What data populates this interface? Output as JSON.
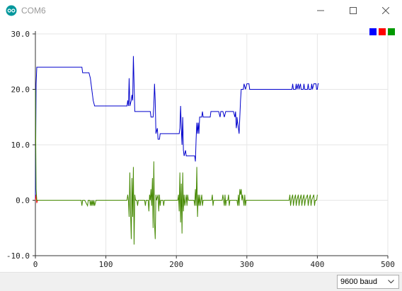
{
  "window": {
    "title": "COM6",
    "icons": [
      "arduino-icon",
      "minimize-icon",
      "maximize-icon",
      "close-icon"
    ]
  },
  "baud": {
    "selected": "9600 baud"
  },
  "legend_colors": [
    "#0000ff",
    "#ff0000",
    "#009900"
  ],
  "chart_data": {
    "type": "line",
    "title": "",
    "xlabel": "",
    "ylabel": "",
    "xlim": [
      0,
      500
    ],
    "ylim": [
      -10,
      30
    ],
    "x_ticks": [
      "0",
      "100",
      "200",
      "300",
      "400",
      "500"
    ],
    "y_ticks": [
      "-10.0",
      "0.0",
      "10.0",
      "20.0",
      "30.0"
    ],
    "grid": true,
    "legend_position": "top-right",
    "series": [
      {
        "color": "#0000cc",
        "points": [
          [
            0,
            0
          ],
          [
            1,
            21
          ],
          [
            2,
            24
          ],
          [
            66,
            24
          ],
          [
            67,
            23
          ],
          [
            76,
            23
          ],
          [
            78,
            22
          ],
          [
            80,
            20
          ],
          [
            82,
            18
          ],
          [
            84,
            17
          ],
          [
            130,
            17
          ],
          [
            131,
            18
          ],
          [
            132,
            17
          ],
          [
            133,
            22
          ],
          [
            134,
            17
          ],
          [
            136,
            18
          ],
          [
            137,
            19
          ],
          [
            138,
            18
          ],
          [
            139,
            26
          ],
          [
            140,
            21
          ],
          [
            141,
            16
          ],
          [
            163,
            16
          ],
          [
            164,
            15
          ],
          [
            167,
            15
          ],
          [
            168,
            17
          ],
          [
            169,
            21
          ],
          [
            170,
            18
          ],
          [
            171,
            12
          ],
          [
            173,
            13
          ],
          [
            174,
            11
          ],
          [
            176,
            11
          ],
          [
            177,
            12
          ],
          [
            204,
            12
          ],
          [
            205,
            13
          ],
          [
            206,
            17
          ],
          [
            207,
            13
          ],
          [
            208,
            10
          ],
          [
            209,
            15
          ],
          [
            210,
            9
          ],
          [
            211,
            8
          ],
          [
            213,
            9
          ],
          [
            214,
            8
          ],
          [
            226,
            8
          ],
          [
            227,
            7
          ],
          [
            228,
            11
          ],
          [
            229,
            14
          ],
          [
            230,
            12
          ],
          [
            231,
            14
          ],
          [
            232,
            12
          ],
          [
            233,
            15
          ],
          [
            236,
            15
          ],
          [
            237,
            16
          ],
          [
            238,
            15
          ],
          [
            248,
            15
          ],
          [
            249,
            16
          ],
          [
            260,
            16
          ],
          [
            262,
            15
          ],
          [
            263,
            16
          ],
          [
            266,
            16
          ],
          [
            268,
            15
          ],
          [
            270,
            16
          ],
          [
            281,
            16
          ],
          [
            283,
            15
          ],
          [
            284,
            16
          ],
          [
            285,
            13
          ],
          [
            286,
            14
          ],
          [
            286,
            15
          ],
          [
            288,
            13
          ],
          [
            289,
            12
          ],
          [
            290,
            15
          ],
          [
            291,
            18
          ],
          [
            292,
            20
          ],
          [
            295,
            20
          ],
          [
            296,
            21
          ],
          [
            298,
            20
          ],
          [
            300,
            21
          ],
          [
            303,
            21
          ],
          [
            304,
            20
          ],
          [
            364,
            20
          ],
          [
            365,
            21
          ],
          [
            366,
            20
          ],
          [
            369,
            20
          ],
          [
            370,
            21
          ],
          [
            371,
            20
          ],
          [
            373,
            21
          ],
          [
            374,
            20
          ],
          [
            376,
            21
          ],
          [
            377,
            20
          ],
          [
            380,
            20
          ],
          [
            381,
            21
          ],
          [
            382,
            20
          ],
          [
            386,
            20
          ],
          [
            387,
            21
          ],
          [
            388,
            20
          ],
          [
            391,
            20
          ],
          [
            392,
            21
          ],
          [
            393,
            20
          ],
          [
            395,
            21
          ],
          [
            398,
            21
          ],
          [
            399,
            20
          ],
          [
            400,
            20
          ],
          [
            401,
            21
          ],
          [
            402,
            21
          ]
        ]
      },
      {
        "color": "#ff0000",
        "points": [
          [
            0,
            0
          ],
          [
            1,
            1
          ],
          [
            2,
            -0.5
          ],
          [
            3,
            0
          ]
        ]
      },
      {
        "color": "#448800",
        "points": [
          [
            0,
            20
          ],
          [
            1,
            2
          ],
          [
            2,
            0
          ],
          [
            65,
            0
          ],
          [
            66,
            -1
          ],
          [
            67,
            0
          ],
          [
            70,
            0
          ],
          [
            74,
            -1
          ],
          [
            75,
            0
          ],
          [
            77,
            0
          ],
          [
            78,
            -1
          ],
          [
            79,
            0
          ],
          [
            80,
            -1
          ],
          [
            81,
            0
          ],
          [
            82,
            -1
          ],
          [
            83,
            0
          ],
          [
            84,
            -1
          ],
          [
            86,
            0
          ],
          [
            130,
            0
          ],
          [
            131,
            1
          ],
          [
            132,
            0
          ],
          [
            133,
            -3
          ],
          [
            134,
            5
          ],
          [
            135,
            -2
          ],
          [
            136,
            -7
          ],
          [
            137,
            4
          ],
          [
            138,
            -3
          ],
          [
            139,
            6
          ],
          [
            140,
            -8
          ],
          [
            141,
            1
          ],
          [
            142,
            0
          ],
          [
            144,
            0
          ],
          [
            145,
            -1
          ],
          [
            146,
            0
          ],
          [
            155,
            0
          ],
          [
            156,
            -1
          ],
          [
            157,
            0
          ],
          [
            160,
            0
          ],
          [
            161,
            -2
          ],
          [
            162,
            1
          ],
          [
            163,
            0
          ],
          [
            164,
            2
          ],
          [
            165,
            -1
          ],
          [
            166,
            4
          ],
          [
            167,
            -5
          ],
          [
            168,
            7
          ],
          [
            169,
            -4
          ],
          [
            170,
            -7
          ],
          [
            171,
            1
          ],
          [
            172,
            0
          ],
          [
            174,
            1
          ],
          [
            175,
            -2
          ],
          [
            176,
            1
          ],
          [
            177,
            -1
          ],
          [
            178,
            0
          ],
          [
            181,
            0
          ],
          [
            182,
            -1
          ],
          [
            183,
            0
          ],
          [
            202,
            0
          ],
          [
            203,
            1
          ],
          [
            204,
            -2
          ],
          [
            205,
            5
          ],
          [
            206,
            -4
          ],
          [
            207,
            3
          ],
          [
            208,
            -6
          ],
          [
            209,
            5
          ],
          [
            210,
            -2
          ],
          [
            211,
            1
          ],
          [
            212,
            -1
          ],
          [
            213,
            0
          ],
          [
            214,
            1
          ],
          [
            215,
            -1
          ],
          [
            216,
            1
          ],
          [
            217,
            0
          ],
          [
            225,
            0
          ],
          [
            226,
            -1
          ],
          [
            227,
            2
          ],
          [
            228,
            -1
          ],
          [
            229,
            6
          ],
          [
            230,
            -3
          ],
          [
            231,
            1
          ],
          [
            232,
            -1
          ],
          [
            233,
            1
          ],
          [
            234,
            -1
          ],
          [
            235,
            0
          ],
          [
            236,
            1
          ],
          [
            237,
            -1
          ],
          [
            238,
            0
          ],
          [
            250,
            0
          ],
          [
            251,
            1
          ],
          [
            252,
            -1
          ],
          [
            253,
            0
          ],
          [
            265,
            0
          ],
          [
            266,
            1
          ],
          [
            267,
            0
          ],
          [
            268,
            -1
          ],
          [
            269,
            1
          ],
          [
            270,
            -1
          ],
          [
            271,
            0
          ],
          [
            273,
            0
          ],
          [
            274,
            1
          ],
          [
            275,
            -1
          ],
          [
            276,
            0
          ],
          [
            286,
            0
          ],
          [
            287,
            -1
          ],
          [
            288,
            1
          ],
          [
            289,
            -1
          ],
          [
            290,
            2
          ],
          [
            291,
            1
          ],
          [
            292,
            2
          ],
          [
            293,
            0
          ],
          [
            294,
            1
          ],
          [
            295,
            0
          ],
          [
            296,
            -1
          ],
          [
            297,
            1
          ],
          [
            298,
            -1
          ],
          [
            299,
            0
          ],
          [
            360,
            0
          ],
          [
            361,
            1
          ],
          [
            362,
            -1
          ],
          [
            363,
            0
          ],
          [
            365,
            1
          ],
          [
            366,
            -1
          ],
          [
            367,
            0
          ],
          [
            369,
            1
          ],
          [
            370,
            -1
          ],
          [
            371,
            0
          ],
          [
            373,
            1
          ],
          [
            374,
            -1
          ],
          [
            375,
            0
          ],
          [
            377,
            1
          ],
          [
            378,
            -1
          ],
          [
            379,
            0
          ],
          [
            381,
            1
          ],
          [
            382,
            -1
          ],
          [
            383,
            0
          ],
          [
            386,
            1
          ],
          [
            387,
            -1
          ],
          [
            388,
            0
          ],
          [
            390,
            1
          ],
          [
            391,
            -1
          ],
          [
            392,
            0
          ],
          [
            395,
            1
          ],
          [
            396,
            -1
          ],
          [
            397,
            0
          ],
          [
            399,
            0
          ],
          [
            400,
            1
          ]
        ]
      }
    ]
  }
}
